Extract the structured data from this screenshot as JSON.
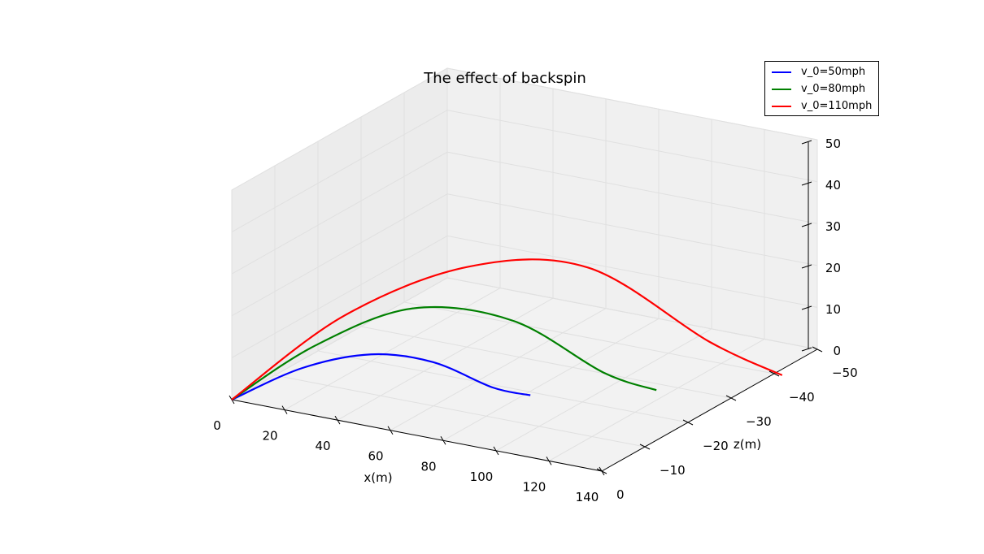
{
  "chart_data": {
    "type": "line",
    "projection": "3d",
    "title": "The effect of backspin",
    "xlabel": "x(m)",
    "zlabel": "z(m)",
    "ylabel": "",
    "xlim": [
      0,
      140
    ],
    "zlim": [
      -50,
      0
    ],
    "ylim": [
      0,
      50
    ],
    "x_ticks": [
      "0",
      "20",
      "40",
      "60",
      "80",
      "100",
      "120",
      "140"
    ],
    "z_ticks": [
      "0",
      "−10",
      "−20",
      "−30",
      "−40",
      "−50"
    ],
    "y_ticks": [
      "0",
      "10",
      "20",
      "30",
      "40",
      "50"
    ],
    "grid": true,
    "legend_position": "top-right",
    "series": [
      {
        "name": "v_0=50mph",
        "color": "#0000ff",
        "points": [
          {
            "x": 0,
            "z": 0,
            "y": 0
          },
          {
            "x": 25,
            "z": -1,
            "y": 10
          },
          {
            "x": 47,
            "z": -3.5,
            "y": 14.5
          },
          {
            "x": 63,
            "z": -8,
            "y": 12
          },
          {
            "x": 76,
            "z": -14,
            "y": 4
          },
          {
            "x": 82,
            "z": -19,
            "y": 0
          }
        ]
      },
      {
        "name": "v_0=80mph",
        "color": "#008000",
        "points": [
          {
            "x": 0,
            "z": 0,
            "y": 0
          },
          {
            "x": 30,
            "z": -1,
            "y": 16
          },
          {
            "x": 62,
            "z": -4,
            "y": 27
          },
          {
            "x": 90,
            "z": -10,
            "y": 24
          },
          {
            "x": 108,
            "z": -20,
            "y": 8
          },
          {
            "x": 115,
            "z": -28,
            "y": 0
          }
        ]
      },
      {
        "name": "v_0=110mph",
        "color": "#ff0000",
        "points": [
          {
            "x": 0,
            "z": 0,
            "y": 0
          },
          {
            "x": 40,
            "z": -1.5,
            "y": 24
          },
          {
            "x": 80,
            "z": -6,
            "y": 38
          },
          {
            "x": 112,
            "z": -14,
            "y": 37
          },
          {
            "x": 135,
            "z": -28,
            "y": 14
          },
          {
            "x": 143,
            "z": -40,
            "y": 0
          }
        ]
      }
    ]
  }
}
